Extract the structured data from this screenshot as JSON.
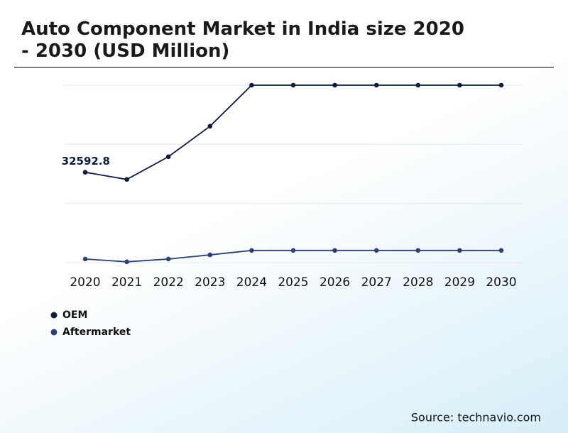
{
  "chart_data": {
    "type": "line",
    "title": "Auto Component Market in India size 2020 - 2030 (USD Million)",
    "source": "Source: technavio.com",
    "categories": [
      "2020",
      "2021",
      "2022",
      "2023",
      "2024",
      "2025",
      "2026",
      "2027",
      "2028",
      "2029",
      "2030"
    ],
    "series": [
      {
        "name": "OEM",
        "color": "#0d1b3e",
        "values": [
          32592.8,
          30000,
          38200,
          49200,
          64000,
          64000,
          64000,
          64000,
          64000,
          64000,
          64000
        ],
        "value_labels": [
          "32592.8",
          null,
          null,
          null,
          null,
          null,
          null,
          null,
          null,
          null,
          null
        ]
      },
      {
        "name": "Aftermarket",
        "color": "#2e3f73",
        "values": [
          1300,
          300,
          1300,
          2800,
          4400,
          4400,
          4400,
          4400,
          4400,
          4400,
          4400
        ]
      }
    ],
    "ylim": [
      0,
      64000
    ],
    "yticks": [
      0,
      21300,
      42700,
      64000
    ],
    "grid": true,
    "show_ytick_labels": false,
    "legend": "bottom-left"
  }
}
